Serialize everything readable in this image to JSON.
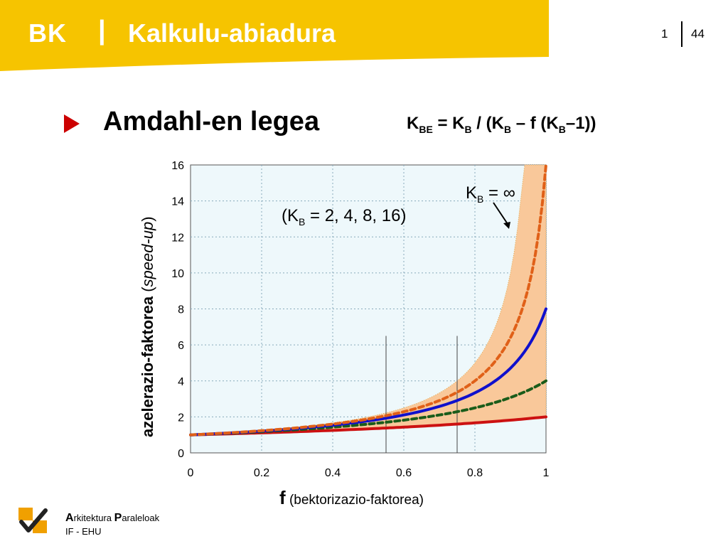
{
  "header": {
    "brand": "BK",
    "separator": "|",
    "title": "Kalkulu-abiadura",
    "page_current": "1",
    "page_total": "44",
    "band_color": "#f6c400"
  },
  "slide": {
    "bullet_color": "#cc0000",
    "title": "Amdahl-en legea",
    "formula": {
      "k_be": "K",
      "k_be_sub": "BE",
      "part1": " = K",
      "kb_sub": "B",
      "part2": " / (K",
      "part3": " – f (K",
      "part4": "–1))"
    }
  },
  "annotations": {
    "series_list_prefix": "(K",
    "series_list_sub": "B",
    "series_list_rest": " = 2, 4, 8, 16)",
    "infinity_prefix": "K",
    "infinity_sub": "B",
    "infinity_rest": " = ∞"
  },
  "axis_labels": {
    "y_bold": "azelerazio-faktorea",
    "y_italic": "speed-up",
    "x_bold": "f",
    "x_rest": " (bektorizazio-faktorea)"
  },
  "footer": {
    "line1_a_cap": "A",
    "line1_a_rest": "rkitektura ",
    "line1_p_cap": "P",
    "line1_p_rest": "araleloak",
    "line2": "IF - EHU",
    "logo_color": "#f0a000"
  },
  "chart_data": {
    "type": "line",
    "x_ticks": [
      "0",
      "0.2",
      "0.4",
      "0.6",
      "0.8",
      "1"
    ],
    "y_ticks": [
      "0",
      "2",
      "4",
      "6",
      "8",
      "10",
      "12",
      "14",
      "16"
    ],
    "xlim": [
      0,
      1
    ],
    "ylim": [
      0,
      16
    ],
    "grid": true,
    "background_color": "#eef8fb",
    "band_color": "#f9c89a",
    "formula": "K_B / (K_B - f (K_B - 1))",
    "vertical_markers": [
      0.55,
      0.75
    ],
    "series": [
      {
        "K_B": 2,
        "color": "#cc1111",
        "dash": false,
        "x": [
          0,
          0.2,
          0.4,
          0.6,
          0.8,
          1.0
        ],
        "y": [
          1.0,
          1.11,
          1.25,
          1.43,
          1.67,
          2.0
        ]
      },
      {
        "K_B": 4,
        "color": "#1a5c1a",
        "dash": true,
        "x": [
          0,
          0.2,
          0.4,
          0.6,
          0.8,
          1.0
        ],
        "y": [
          1.0,
          1.18,
          1.43,
          1.82,
          2.5,
          4.0
        ]
      },
      {
        "K_B": 8,
        "color": "#1010cc",
        "dash": false,
        "x": [
          0,
          0.2,
          0.4,
          0.6,
          0.8,
          1.0
        ],
        "y": [
          1.0,
          1.21,
          1.54,
          2.11,
          3.33,
          8.0
        ]
      },
      {
        "K_B": 16,
        "color": "#e06018",
        "dash": true,
        "x": [
          0,
          0.2,
          0.4,
          0.6,
          0.8,
          1.0
        ],
        "y": [
          1.0,
          1.23,
          1.6,
          2.29,
          4.0,
          16.0
        ]
      },
      {
        "K_B": "∞",
        "color": "#e8a060",
        "dash": false,
        "x": [
          0,
          0.2,
          0.4,
          0.6,
          0.8,
          0.9,
          0.95
        ],
        "y": [
          1.0,
          1.25,
          1.67,
          2.5,
          5.0,
          10.0,
          20.0
        ]
      }
    ]
  }
}
